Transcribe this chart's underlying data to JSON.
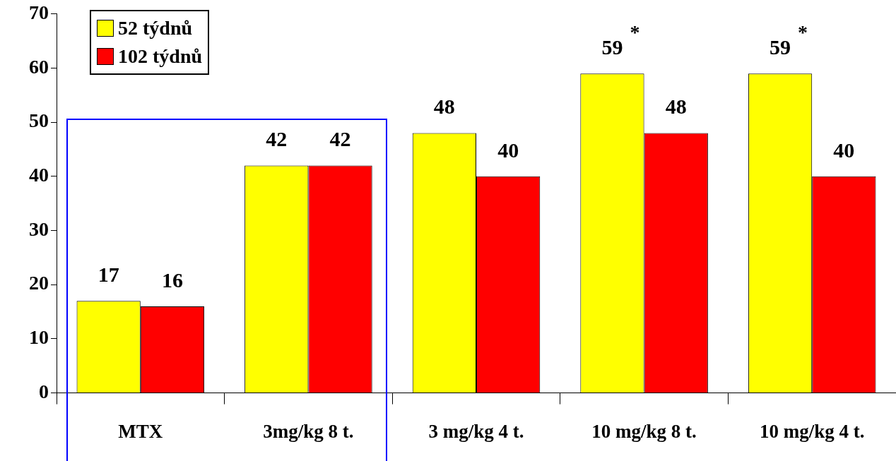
{
  "chart_data": {
    "type": "bar",
    "categories": [
      "MTX",
      "3mg/kg 8 t.",
      "3 mg/kg 4 t.",
      "10 mg/kg 8 t.",
      "10 mg/kg 4 t."
    ],
    "series": [
      {
        "name": "52 týdnů",
        "color": "#ffff00",
        "values": [
          17,
          42,
          48,
          59,
          59
        ]
      },
      {
        "name": "102 týdnů",
        "color": "#ff0000",
        "values": [
          16,
          42,
          40,
          48,
          40
        ]
      }
    ],
    "ylim": [
      0,
      70
    ],
    "yticks": [
      0,
      10,
      20,
      30,
      40,
      50,
      60,
      70
    ],
    "data_labels": true,
    "legend": "top left",
    "annotations": [
      {
        "text": "*",
        "x": "10 mg/kg 8 t.",
        "y": 59
      },
      {
        "text": "*",
        "x": "10 mg/kg 4 t.",
        "y": 59
      }
    ]
  }
}
